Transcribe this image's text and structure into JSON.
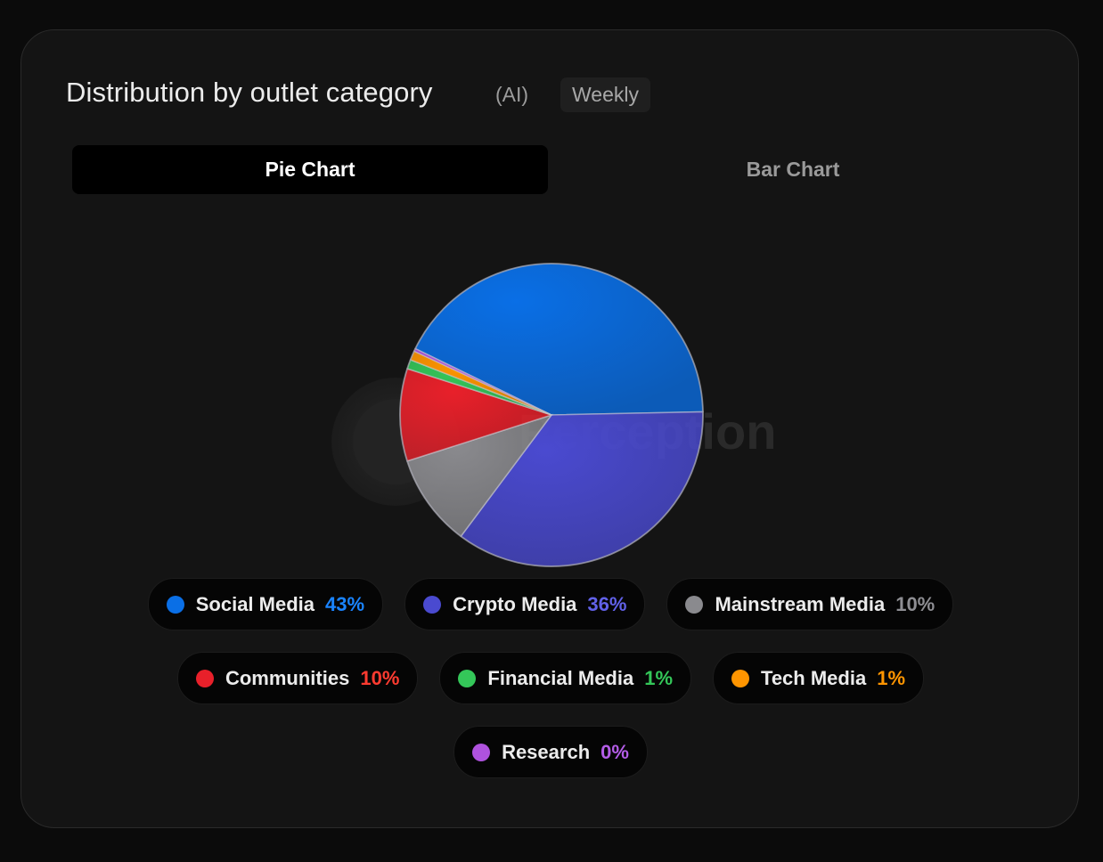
{
  "header": {
    "title": "Distribution by outlet category",
    "ai_tag": "(AI)",
    "period": "Weekly"
  },
  "tabs": [
    {
      "label": "Pie Chart",
      "active": true
    },
    {
      "label": "Bar Chart",
      "active": false
    }
  ],
  "watermark": {
    "text": "Perception"
  },
  "chart_data": {
    "type": "pie",
    "title": "",
    "slices": [
      {
        "label": "Social Media",
        "value": 43,
        "value_label": "43%",
        "color": "#0a6fe6",
        "text_color": "#1a84ff"
      },
      {
        "label": "Crypto Media",
        "value": 36,
        "value_label": "36%",
        "color": "#4a4ad0",
        "text_color": "#6161e8"
      },
      {
        "label": "Mainstream Media",
        "value": 10,
        "value_label": "10%",
        "color": "#8a8a8e",
        "text_color": "#8e8e93"
      },
      {
        "label": "Communities",
        "value": 10,
        "value_label": "10%",
        "color": "#e8202a",
        "text_color": "#ff3b30"
      },
      {
        "label": "Financial Media",
        "value": 1,
        "value_label": "1%",
        "color": "#34c759",
        "text_color": "#34c759"
      },
      {
        "label": "Tech Media",
        "value": 1,
        "value_label": "1%",
        "color": "#ff9500",
        "text_color": "#ff9500"
      },
      {
        "label": "Research",
        "value": 0,
        "value_label": "0%",
        "color": "#af52de",
        "text_color": "#b45de8"
      }
    ]
  }
}
